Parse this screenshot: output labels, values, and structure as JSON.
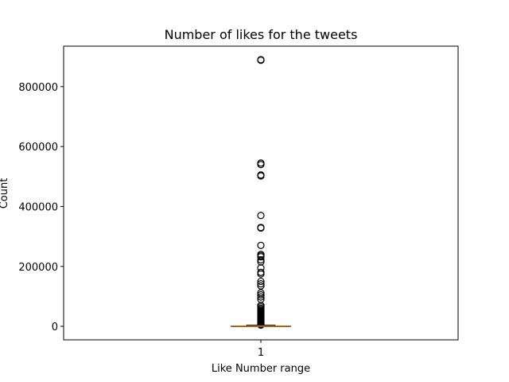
{
  "chart_data": {
    "type": "box",
    "title": "Number of likes for the tweets",
    "xlabel": "Like Number range",
    "ylabel": "Count",
    "categories": [
      "1"
    ],
    "ylim": [
      -45000,
      935000
    ],
    "yticks": [
      0,
      200000,
      400000,
      600000,
      800000
    ],
    "ytick_labels": [
      "0",
      "200000",
      "400000",
      "600000",
      "800000"
    ],
    "grid": false,
    "median_color": "#ff7f0e",
    "box": {
      "q1": 0,
      "median": 400,
      "q3": 1500,
      "whisker_low": 0,
      "whisker_high": 3700
    },
    "outliers": [
      890000,
      888000,
      545000,
      540000,
      505000,
      502000,
      370000,
      330000,
      328000,
      270000,
      240000,
      236000,
      232000,
      222000,
      215000,
      195000,
      180000,
      175000,
      150000,
      142000,
      135000,
      112000,
      105000,
      98000,
      90000,
      70000,
      65000,
      60000,
      56000,
      52000,
      48000,
      45000,
      42000,
      39000,
      36000,
      33000,
      30000,
      27000,
      24000,
      21000,
      18000,
      15000,
      12000,
      10000,
      8000,
      6500,
      5000,
      4200
    ]
  }
}
